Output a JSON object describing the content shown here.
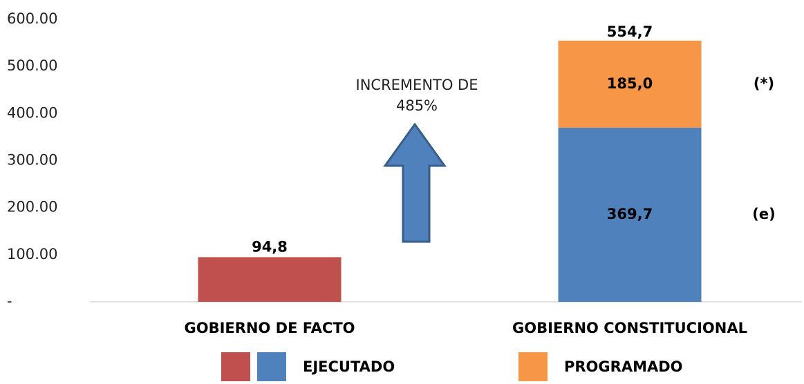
{
  "chart_data": {
    "type": "stacked_bar",
    "categories": [
      "GOBIERNO DE FACTO",
      "GOBIERNO CONSTITUCIONAL"
    ],
    "series": [
      {
        "name": "EJECUTADO",
        "colors": [
          "#c0504d",
          "#4f81bd"
        ],
        "values": [
          94.8,
          369.7
        ],
        "value_labels": [
          "94,8",
          "369,7"
        ],
        "side_labels": [
          null,
          "(e)"
        ]
      },
      {
        "name": "PROGRAMADO",
        "color": "#f79646",
        "values": [
          null,
          185.0
        ],
        "value_labels": [
          null,
          "185,0"
        ],
        "side_labels": [
          null,
          "(*)"
        ]
      }
    ],
    "totals": [
      null,
      554.7
    ],
    "total_labels": [
      null,
      "554,7"
    ],
    "annotation": [
      "INCREMENTO DE",
      "485%"
    ],
    "ylim": [
      0,
      600
    ],
    "yticks": [
      {
        "value": 0,
        "label": "-"
      },
      {
        "value": 100,
        "label": "100.00"
      },
      {
        "value": 200,
        "label": "200.00"
      },
      {
        "value": 300,
        "label": "300.00"
      },
      {
        "value": 400,
        "label": "400.00"
      },
      {
        "value": 500,
        "label": "500.00"
      },
      {
        "value": 600,
        "label": "600.00"
      }
    ],
    "grid": false
  }
}
